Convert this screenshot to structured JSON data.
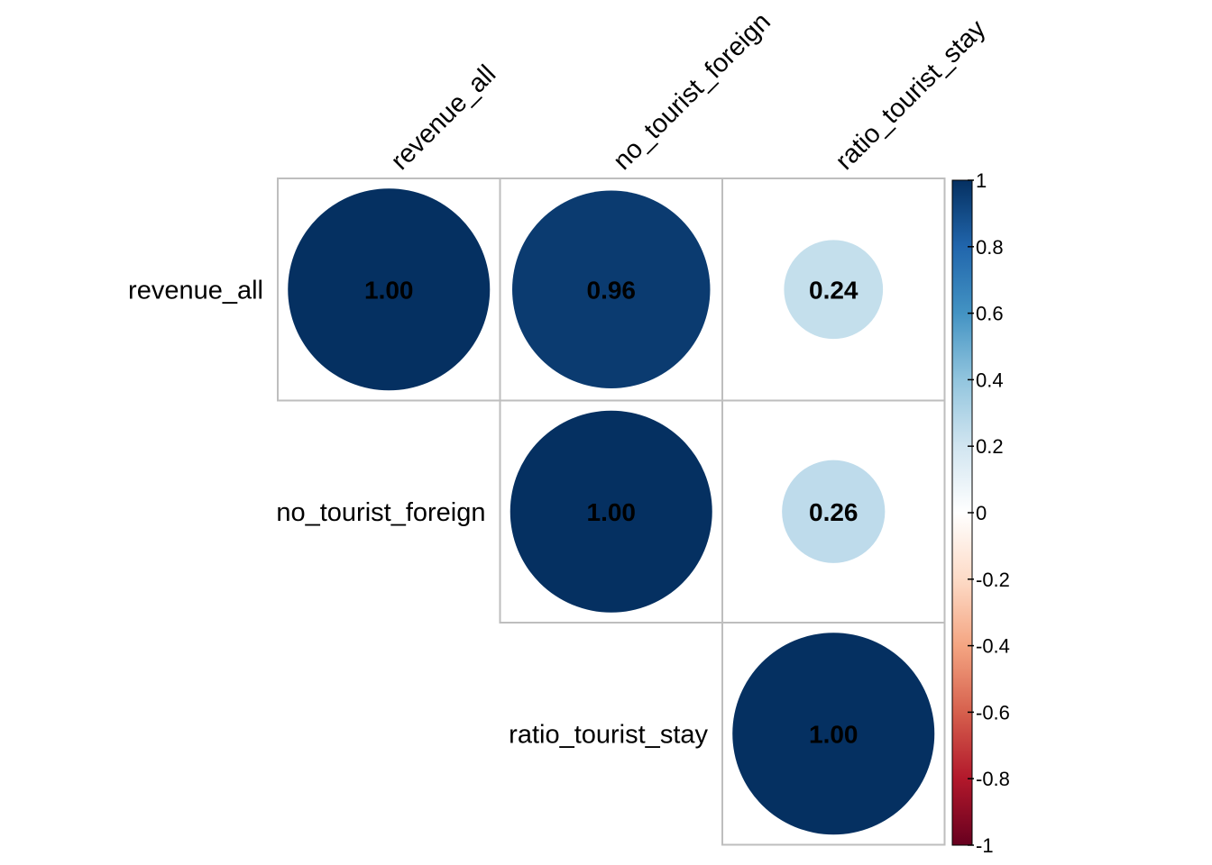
{
  "chart_data": {
    "type": "heatmap",
    "variables": [
      "revenue_all",
      "no_tourist_foreign",
      "ratio_tourist_stay"
    ],
    "matrix": [
      [
        1.0,
        0.96,
        0.24
      ],
      [
        0.96,
        1.0,
        0.26
      ],
      [
        0.24,
        0.26,
        1.0
      ]
    ],
    "shown_triangle": "upper",
    "value_labels": [
      {
        "row": 0,
        "col": 0,
        "value": 1.0,
        "text": "1.00"
      },
      {
        "row": 0,
        "col": 1,
        "value": 0.96,
        "text": "0.96"
      },
      {
        "row": 0,
        "col": 2,
        "value": 0.24,
        "text": "0.24"
      },
      {
        "row": 1,
        "col": 1,
        "value": 1.0,
        "text": "1.00"
      },
      {
        "row": 1,
        "col": 2,
        "value": 0.26,
        "text": "0.26"
      },
      {
        "row": 2,
        "col": 2,
        "value": 1.0,
        "text": "1.00"
      }
    ],
    "colorbar": {
      "range": [
        -1,
        1
      ],
      "ticks": [
        1,
        0.8,
        0.6,
        0.4,
        0.2,
        0,
        -0.2,
        -0.4,
        -0.6,
        -0.8,
        -1
      ],
      "tick_labels": [
        "1",
        "0.8",
        "0.6",
        "0.4",
        "0.2",
        "0",
        "-0.2",
        "-0.4",
        "-0.6",
        "-0.8",
        "-1"
      ],
      "placement": "right"
    },
    "colors": {
      "grid": "#bebebe",
      "palette": [
        "#67001f",
        "#b2182b",
        "#d6604d",
        "#f4a582",
        "#fddbc7",
        "#ffffff",
        "#d1e5f0",
        "#92c5de",
        "#4393c3",
        "#2166ac",
        "#053061"
      ]
    },
    "title": "",
    "xlabel": "",
    "ylabel": ""
  }
}
